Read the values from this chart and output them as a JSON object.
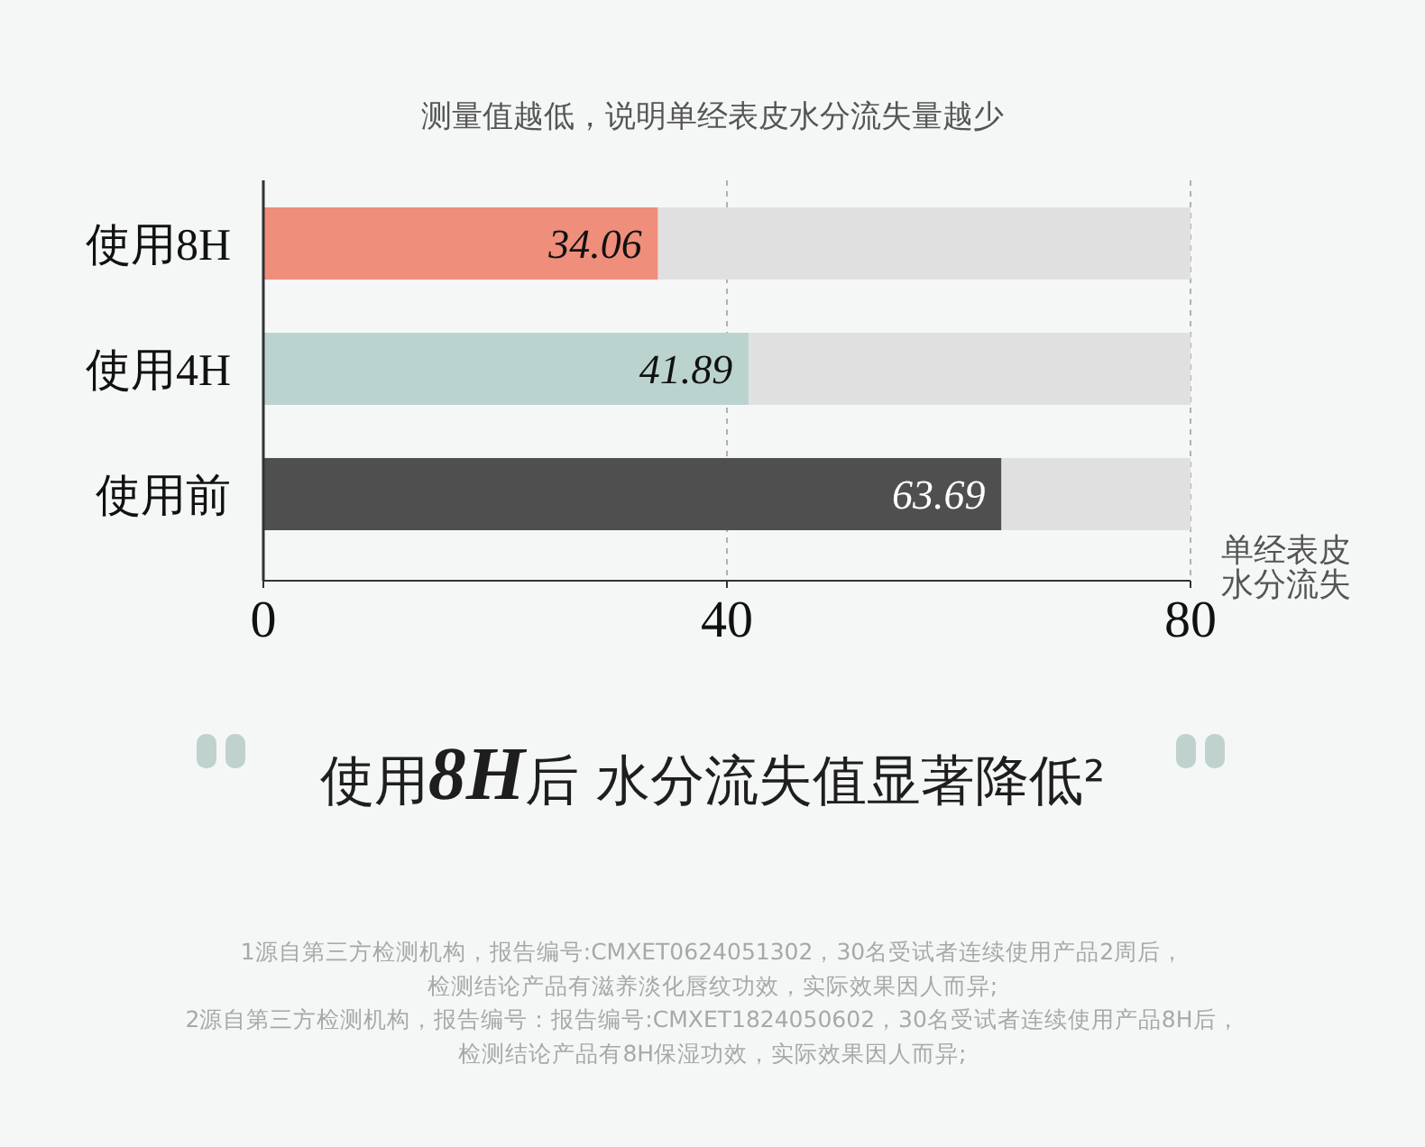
{
  "chart_data": {
    "type": "bar",
    "orientation": "horizontal",
    "stacked": true,
    "title": "测量值越低，说明单经表皮水分流失量越少",
    "xlabel": "单经表皮水分流失",
    "categories": [
      "使用8H",
      "使用4H",
      "使用前"
    ],
    "series": [
      {
        "colors": [
          "#ef8e7b",
          "#bbd3cf",
          "#4f4f4f"
        ],
        "values": [
          34.06,
          41.89,
          63.69
        ],
        "value_labels": [
          "34.06",
          "41.89",
          "63.69"
        ]
      },
      {
        "color": "#e0e0e0",
        "values": [
          45.94,
          38.11,
          16.31
        ]
      }
    ],
    "xlim": [
      0,
      80
    ],
    "xticks": [
      0,
      40,
      80
    ],
    "grid": "x",
    "annotations": [
      "使用8H后 水分流失值显著降低²",
      "1源自第三方检测机构，报告编号:CMXET0624051302，30名受试者连续使用产品2周后，",
      "检测结论产品有滋养淡化唇纹功效，实际效果因人而异;",
      "2源自第三方检测机构，报告编号：报告编号:CMXET1824050602，30名受试者连续使用产品8H后，",
      "检测结论产品有8H保湿功效，实际效果因人而异;"
    ]
  }
}
